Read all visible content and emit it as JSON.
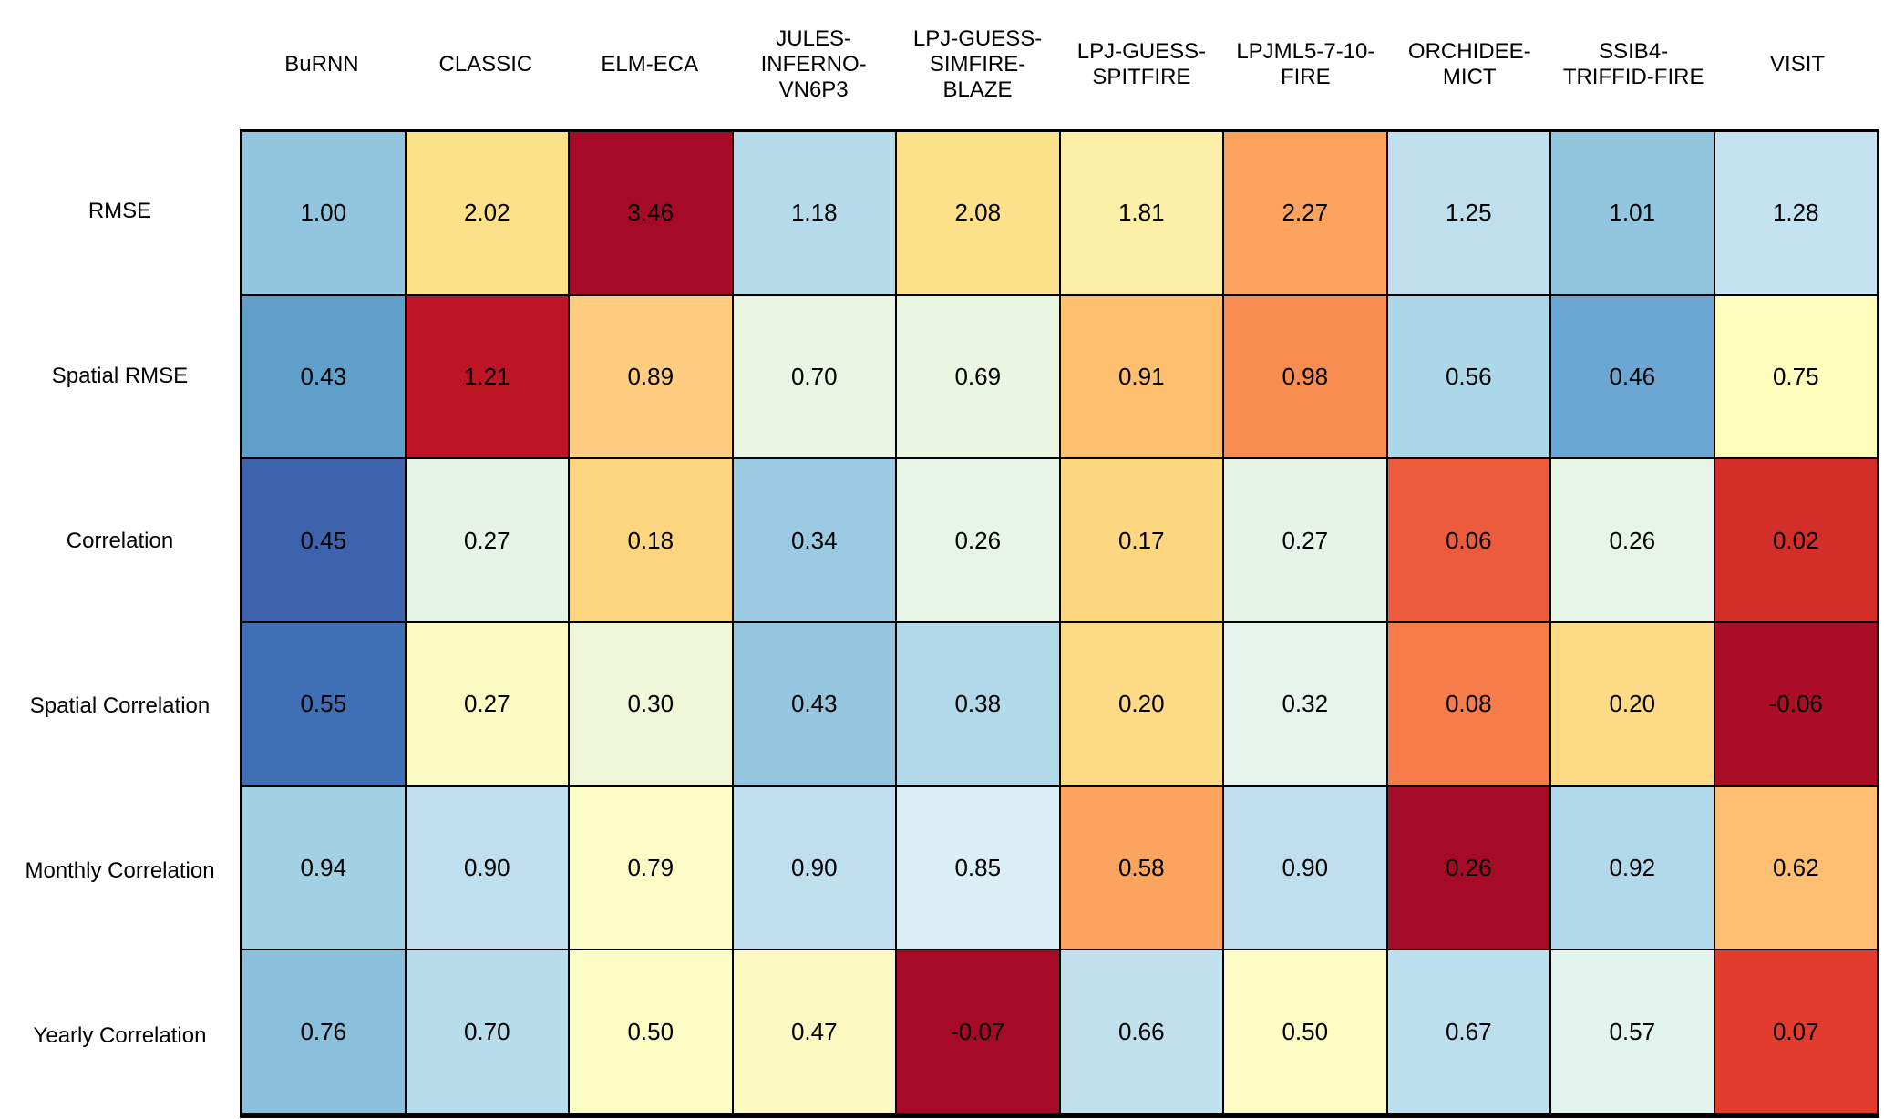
{
  "figure": {
    "background": "#ffffff",
    "grid_line_color": "#000000",
    "text_color": "#000000"
  },
  "chart_data": {
    "type": "heatmap",
    "title": "",
    "xlabel": "",
    "ylabel": "",
    "colormap": "RdYlBu",
    "legend": "none",
    "columns": [
      "BuRNN",
      "CLASSIC",
      "ELM-ECA",
      "JULES-INFERNO-VN6P3",
      "LPJ-GUESS-SIMFIRE-BLAZE",
      "LPJ-GUESS-SPITFIRE",
      "LPJML5-7-10-FIRE",
      "ORCHIDEE-MICT",
      "SSIB4-TRIFFID-FIRE",
      "VISIT"
    ],
    "rows": [
      "RMSE",
      "Spatial RMSE",
      "Correlation",
      "Spatial Correlation",
      "Monthly Correlation",
      "Yearly Correlation"
    ],
    "values": [
      [
        1.0,
        2.02,
        3.46,
        1.18,
        2.08,
        1.81,
        2.27,
        1.25,
        1.01,
        1.28
      ],
      [
        0.43,
        1.21,
        0.89,
        0.7,
        0.69,
        0.91,
        0.98,
        0.56,
        0.46,
        0.75
      ],
      [
        0.45,
        0.27,
        0.18,
        0.34,
        0.26,
        0.17,
        0.27,
        0.06,
        0.26,
        0.02
      ],
      [
        0.55,
        0.27,
        0.3,
        0.43,
        0.38,
        0.2,
        0.32,
        0.08,
        0.2,
        -0.06
      ],
      [
        0.94,
        0.9,
        0.79,
        0.9,
        0.85,
        0.58,
        0.9,
        0.26,
        0.92,
        0.62
      ],
      [
        0.76,
        0.7,
        0.5,
        0.47,
        -0.07,
        0.66,
        0.5,
        0.67,
        0.57,
        0.07
      ]
    ],
    "values_display": [
      [
        "1.00",
        "2.02",
        "3.46",
        "1.18",
        "2.08",
        "1.81",
        "2.27",
        "1.25",
        "1.01",
        "1.28"
      ],
      [
        "0.43",
        "1.21",
        "0.89",
        "0.70",
        "0.69",
        "0.91",
        "0.98",
        "0.56",
        "0.46",
        "0.75"
      ],
      [
        "0.45",
        "0.27",
        "0.18",
        "0.34",
        "0.26",
        "0.17",
        "0.27",
        "0.06",
        "0.26",
        "0.02"
      ],
      [
        "0.55",
        "0.27",
        "0.30",
        "0.43",
        "0.38",
        "0.20",
        "0.32",
        "0.08",
        "0.20",
        "-0.06"
      ],
      [
        "0.94",
        "0.90",
        "0.79",
        "0.90",
        "0.85",
        "0.58",
        "0.90",
        "0.26",
        "0.92",
        "0.62"
      ],
      [
        "0.76",
        "0.70",
        "0.50",
        "0.47",
        "-0.07",
        "0.66",
        "0.50",
        "0.67",
        "0.57",
        "0.07"
      ]
    ],
    "cell_colors": [
      [
        "#92c5de",
        "#fce08a",
        "#a50b26",
        "#b5dbeb",
        "#fce08a",
        "#fcf0a9",
        "#fba35c",
        "#bfdfed",
        "#92c5de",
        "#c4e2ef"
      ],
      [
        "#619fcb",
        "#bb1526",
        "#fecd81",
        "#eaf6e4",
        "#e9f6e2",
        "#fec06f",
        "#f88d51",
        "#abd7e9",
        "#6ba7d2",
        "#fdfdbe"
      ],
      [
        "#3c63ac",
        "#e5f4e7",
        "#fdd57f",
        "#9acbe2",
        "#e7f5e6",
        "#fdd680",
        "#e5f4e7",
        "#ec5c3c",
        "#e7f5e6",
        "#d32e27"
      ],
      [
        "#3f6fb5",
        "#fbfcc4",
        "#eff7d8",
        "#95c6e0",
        "#b2d9e9",
        "#fdda86",
        "#e7f4ec",
        "#f67c4a",
        "#fdda86",
        "#ac0d26"
      ],
      [
        "#a3d1e4",
        "#bfdfee",
        "#fcfdc6",
        "#bfdfee",
        "#daeef5",
        "#fba55e",
        "#bfdfee",
        "#a50b26",
        "#b2d9e9",
        "#febf72"
      ],
      [
        "#8bc0dc",
        "#b7dcec",
        "#fcfdc5",
        "#fdfac1",
        "#a50b26",
        "#c0e0ee",
        "#fcfdc5",
        "#bddeed",
        "#e3f3ed",
        "#e13c2e"
      ]
    ]
  }
}
